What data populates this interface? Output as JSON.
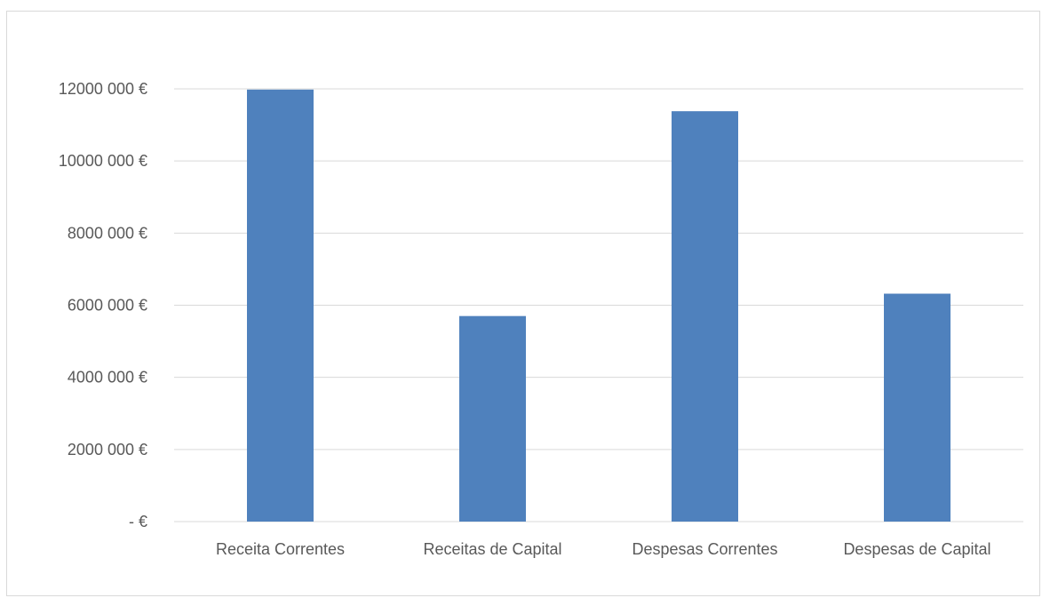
{
  "chart_data": {
    "type": "bar",
    "title": "",
    "xlabel": "",
    "ylabel": "",
    "categories": [
      "Receita Correntes",
      "Receitas de Capital",
      "Despesas Correntes",
      "Despesas de Capital"
    ],
    "values": [
      11980000,
      5700000,
      11380000,
      6320000
    ],
    "ylim": [
      0,
      12000000
    ],
    "y_ticks": [
      0,
      2000000,
      4000000,
      6000000,
      8000000,
      10000000,
      12000000
    ],
    "y_tick_labels": [
      "-  €",
      "2000 000 €",
      "4000 000 €",
      "6000 000 €",
      "8000 000 €",
      "10000 000 €",
      "12000 000 €"
    ],
    "grid": true,
    "legend": "none",
    "colors": {
      "bar": "#4F81BD",
      "grid": "#d9d9d9",
      "text": "#595959"
    }
  }
}
